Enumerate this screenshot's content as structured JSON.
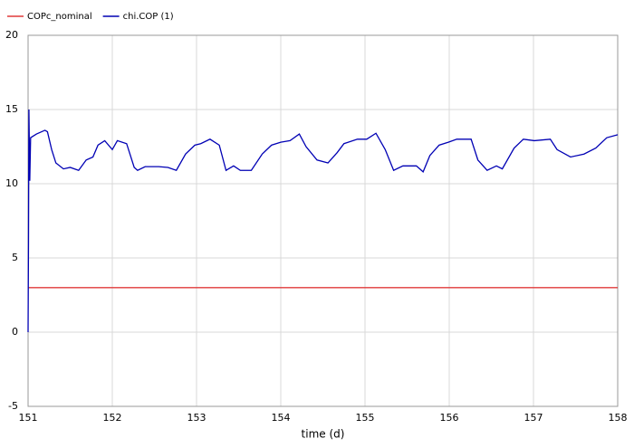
{
  "chart_data": {
    "type": "line",
    "x_label": "time (d)",
    "xlim": [
      151,
      158
    ],
    "xticks": [
      151,
      152,
      153,
      154,
      155,
      156,
      157,
      158
    ],
    "ylim": [
      -5,
      20
    ],
    "yticks": [
      -5,
      0,
      5,
      10,
      15,
      20
    ],
    "grid": true,
    "legend": "top-left",
    "series": [
      {
        "name": "COPc_nominal",
        "color": "#e03a3a",
        "x": [
          151,
          158
        ],
        "values": [
          3,
          3
        ]
      },
      {
        "name": "chi.COP (1)",
        "color": "#0000b4",
        "x": [
          151,
          151.005,
          151.01,
          151.02,
          151.03,
          151.1,
          151.2,
          151.23,
          151.28,
          151.33,
          151.42,
          151.5,
          151.6,
          151.69,
          151.77,
          151.83,
          151.91,
          152.0,
          152.06,
          152.17,
          152.26,
          152.3,
          152.39,
          152.55,
          152.66,
          152.76,
          152.87,
          152.98,
          153.05,
          153.16,
          153.27,
          153.35,
          153.44,
          153.52,
          153.65,
          153.78,
          153.89,
          154.0,
          154.11,
          154.22,
          154.3,
          154.43,
          154.56,
          154.67,
          154.75,
          154.91,
          155.02,
          155.13,
          155.24,
          155.34,
          155.45,
          155.61,
          155.69,
          155.77,
          155.88,
          155.99,
          156.09,
          156.26,
          156.34,
          156.45,
          156.56,
          156.63,
          156.77,
          156.88,
          157.01,
          157.2,
          157.28,
          157.44,
          157.6,
          157.74,
          157.87,
          158
        ],
        "values": [
          0,
          6,
          15,
          10.2,
          13.1,
          13.35,
          13.6,
          13.5,
          12.3,
          11.4,
          11.0,
          11.1,
          10.9,
          11.6,
          11.8,
          12.6,
          12.9,
          12.3,
          12.9,
          12.7,
          11.1,
          10.9,
          11.15,
          11.15,
          11.1,
          10.9,
          12.0,
          12.6,
          12.7,
          13.0,
          12.6,
          10.9,
          11.2,
          10.9,
          10.9,
          12.0,
          12.6,
          12.8,
          12.9,
          13.35,
          12.5,
          11.6,
          11.4,
          12.1,
          12.7,
          13.0,
          13.0,
          13.4,
          12.3,
          10.9,
          11.2,
          11.2,
          10.8,
          11.9,
          12.6,
          12.8,
          13.0,
          13.0,
          11.6,
          10.9,
          11.2,
          11.0,
          12.4,
          13.0,
          12.9,
          13.0,
          12.3,
          11.8,
          12.0,
          12.4,
          13.1,
          13.3
        ]
      }
    ]
  }
}
